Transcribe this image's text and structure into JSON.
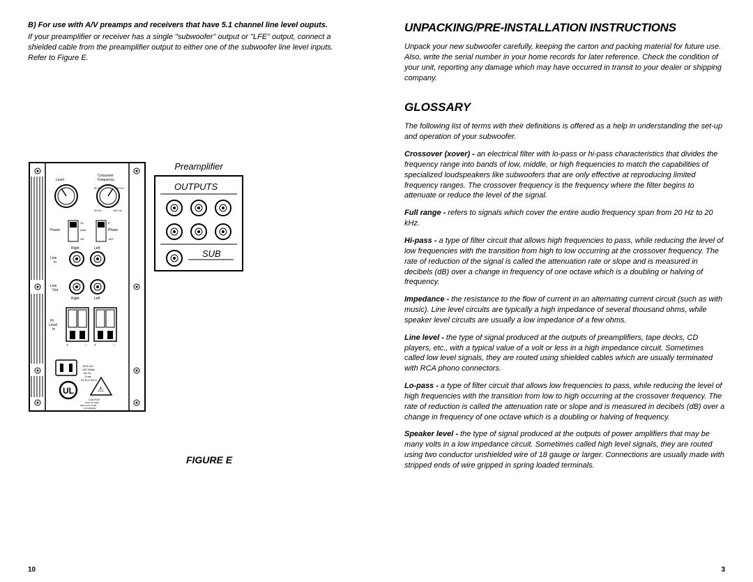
{
  "left": {
    "sectionB": {
      "title": "B) For use with A/V preamps and receivers that have 5.1 channel line level ouputs.",
      "body": "If your preamplifier or receiver has a single \"subwoofer\" output or \"LFE\" output, connect a shielded cable from the preamplifier output to either one of the subwoofer line level inputs. Refer to Figure E."
    },
    "figure": {
      "preampLabel": "Preamplifier",
      "outputsLabel": "OUTPUTS",
      "subLabel": "SUB",
      "caption": "FIGURE E",
      "panelLabels": {
        "level": "Level",
        "crossover": "Crossover",
        "frequency": "Frequency",
        "power": "Power",
        "on": "On",
        "auto": "Auto",
        "off": "Off",
        "phase": "Phase",
        "deg0": "0°",
        "deg180": "180°",
        "lineIn": "Line In",
        "lineOut": "Line Out",
        "right": "Right",
        "left": "Left",
        "hiLevelIn": "Hi Level In",
        "freq50": "50 Hz",
        "freq150": "150 Hz",
        "freq40": "40 Hz",
        "voltage": "120V AC\n180 Watts\n60 Hz\nFuse\n2A SLO-BLO"
      }
    },
    "pageNum": "10"
  },
  "right": {
    "title1": "UNPACKING/PRE-INSTALLATION INSTRUCTIONS",
    "body1": "Unpack your new subwoofer carefully, keeping the carton and packing material for future use.  Also, write the serial number in your home records for later reference. Check the condition of your unit, reporting any damage which may have occurred in transit to your dealer or shipping company.",
    "title2": "GLOSSARY",
    "intro": "The following list of terms with their definitions is offered as a help in understanding the set-up and operation of your subwoofer.",
    "items": [
      {
        "term": "Crossover (xover) - ",
        "def": "an electrical filter with lo-pass or hi-pass characteristics that divides the frequency range into bands of low, middle, or high frequencies to match the capabilities of specialized loudspeakers like subwoofers that are only effective at reproducing limited frequency ranges. The crossover frequency is the frequency where the filter begins to attenuate or reduce the level of the signal."
      },
      {
        "term": "Full range - ",
        "def": "refers to signals which cover the entire audio frequency span from 20 Hz to 20 kHz."
      },
      {
        "term": "Hi-pass - ",
        "def": "a type of filter circuit that allows high frequencies to pass, while reducing the level of low frequencies with the transition from high to low occurring at the crossover frequency. The rate of reduction of the signal is called the attenuation rate or slope and is measured in decibels (dB) over a change in frequency of one octave which is a doubling or halving of frequency."
      },
      {
        "term": "Impedance - ",
        "def": "the resistance to the flow of current in an alternating current circuit (such as with music).  Line level circuits are typically a high impedance of several thousand ohms, while speaker level circuits are usually a low impedance of a few ohms."
      },
      {
        "term": "Line level - ",
        "def": "the type of signal produced at the outputs of preamplifiers, tape decks, CD players, etc., with a typical value of a volt or less in a high impedance circuit.  Sometimes called low level signals, they are routed using shielded cables which are usually terminated with RCA phono connectors."
      },
      {
        "term": "Lo-pass - ",
        "def": "a type of filter circuit that allows low frequencies to pass, while reducing the level of high frequencies with the transition from low to high occurring at the crossover frequency. The rate of reduction is called the attenuation rate or slope and is measured in decibels (dB) over a change in frequency of one octave which is a doubling or halving of frequency."
      },
      {
        "term": "Speaker level - ",
        "def": "the type of signal produced at the outputs of power amplifiers that may be many volts in a low impedance circuit.  Sometimes called high level signals, they are routed using two conductor unshielded wire of 18 gauge or larger. Connections are usually made with stripped ends of wire gripped in spring loaded terminals."
      }
    ],
    "pageNum": "3"
  }
}
